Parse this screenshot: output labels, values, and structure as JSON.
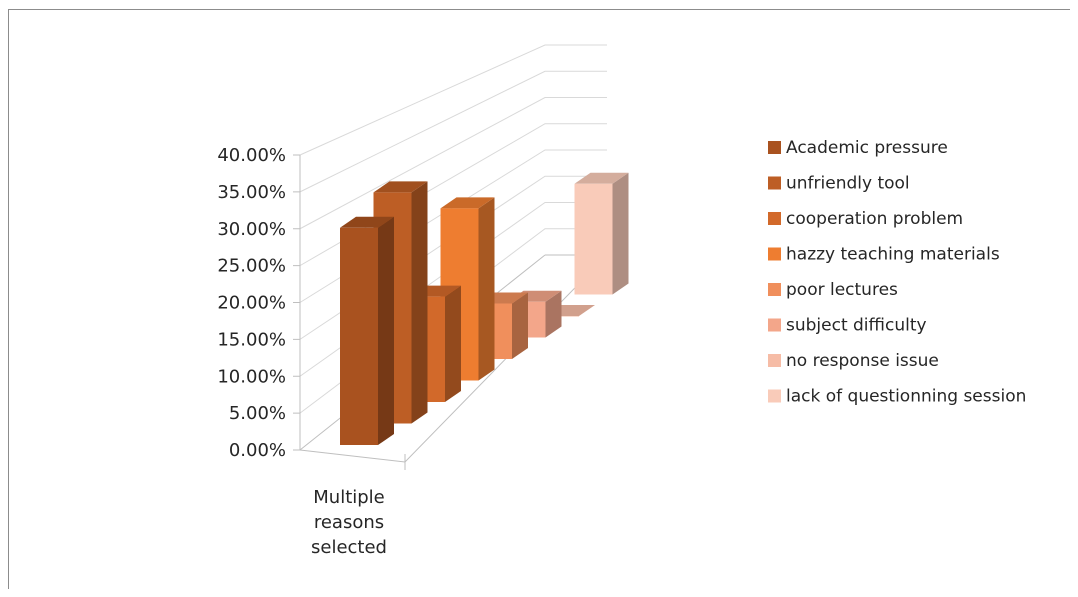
{
  "chart_data": {
    "type": "bar",
    "categories": [
      "Multiple\nreasons\nselected"
    ],
    "series": [
      {
        "name": "Academic pressure",
        "values": [
          0.31
        ],
        "color": "#A9521F"
      },
      {
        "name": "unfriendly tool",
        "values": [
          0.34
        ],
        "color": "#BD5E25"
      },
      {
        "name": "cooperation problem",
        "values": [
          0.16
        ],
        "color": "#D2692A"
      },
      {
        "name": "hazzy teaching materials",
        "values": [
          0.27
        ],
        "color": "#EE7D30"
      },
      {
        "name": "poor lectures",
        "values": [
          0.09
        ],
        "color": "#F08F5C"
      },
      {
        "name": "subject difficulty",
        "values": [
          0.06
        ],
        "color": "#F3A68A"
      },
      {
        "name": "no response issue",
        "values": [
          0.0
        ],
        "color": "#F6BCA6"
      },
      {
        "name": "lack of questionning session",
        "values": [
          0.2
        ],
        "color": "#F9CBB9"
      }
    ],
    "y_ticks": [
      "0.00%",
      "5.00%",
      "10.00%",
      "15.00%",
      "20.00%",
      "25.00%",
      "30.00%",
      "35.00%",
      "40.00%"
    ],
    "ylim": [
      0,
      0.4
    ],
    "grid": true,
    "legend": "right",
    "title": "",
    "xlabel": "",
    "ylabel": ""
  }
}
